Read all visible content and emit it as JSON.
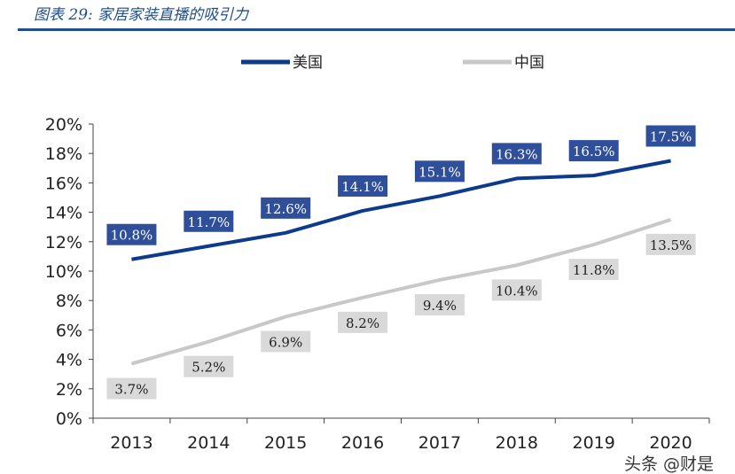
{
  "header": {
    "title": "图表 29:  家居家装直播的吸引力"
  },
  "watermark": "头条 @财是",
  "chart_data": {
    "type": "line",
    "categories": [
      "2013",
      "2014",
      "2015",
      "2016",
      "2017",
      "2018",
      "2019",
      "2020"
    ],
    "ylim": [
      0,
      20
    ],
    "yticks": [
      "0%",
      "2%",
      "4%",
      "6%",
      "8%",
      "10%",
      "12%",
      "14%",
      "16%",
      "18%",
      "20%"
    ],
    "legend_position": "top",
    "grid": false,
    "series": [
      {
        "name": "美国",
        "color": "#0d3b8c",
        "values": [
          10.8,
          11.7,
          12.6,
          14.1,
          15.1,
          16.3,
          16.5,
          17.5
        ],
        "labels": [
          "10.8%",
          "11.7%",
          "12.6%",
          "14.1%",
          "15.1%",
          "16.3%",
          "16.5%",
          "17.5%"
        ],
        "label_color": "#ffffff",
        "label_bg": "#2f4f9a"
      },
      {
        "name": "中国",
        "color": "#c8c8c8",
        "values": [
          3.7,
          5.2,
          6.9,
          8.2,
          9.4,
          10.4,
          11.8,
          13.5
        ],
        "labels": [
          "3.7%",
          "5.2%",
          "6.9%",
          "8.2%",
          "9.4%",
          "10.4%",
          "11.8%",
          "13.5%"
        ],
        "label_color": "#222222",
        "label_bg": "#d9d9d9"
      }
    ]
  }
}
